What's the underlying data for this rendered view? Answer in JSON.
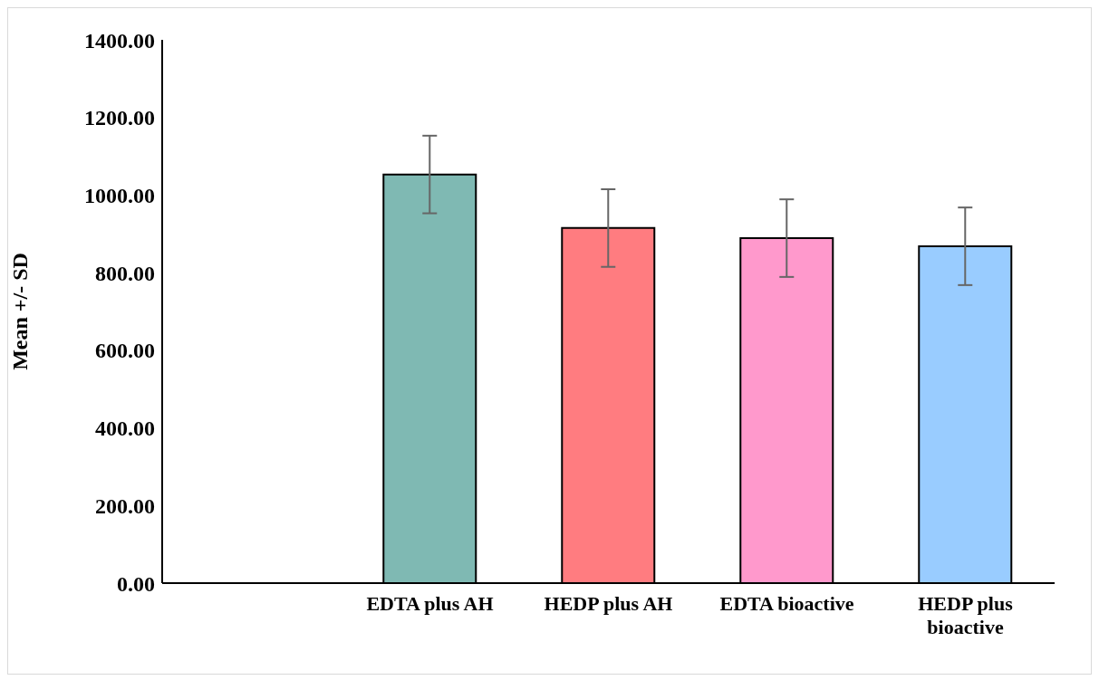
{
  "chart_data": {
    "type": "bar",
    "ylabel": "Mean +/- SD",
    "categories": [
      null,
      "EDTA plus AH",
      "HEDP plus AH",
      "EDTA bioactive",
      "HEDP plus bioactive"
    ],
    "values": [
      null,
      1053,
      915,
      889,
      868
    ],
    "colors": [
      "#7fb9b3",
      "#7fb9b3",
      "#ff7c80",
      "#ff99cc",
      "#99ccff"
    ],
    "errors": [
      null,
      100,
      100,
      100,
      100
    ],
    "ylim": [
      0,
      1400
    ],
    "yticks": [
      {
        "value": 0,
        "label": "0.00"
      },
      {
        "value": 200,
        "label": "200.00"
      },
      {
        "value": 400,
        "label": "400.00"
      },
      {
        "value": 600,
        "label": "600.00"
      },
      {
        "value": 800,
        "label": "800.00"
      },
      {
        "value": 1000,
        "label": "1000.00"
      },
      {
        "value": 1200,
        "label": "1200.00"
      },
      {
        "value": 1400,
        "label": "1400.00"
      }
    ],
    "grid": false,
    "legend": false
  }
}
